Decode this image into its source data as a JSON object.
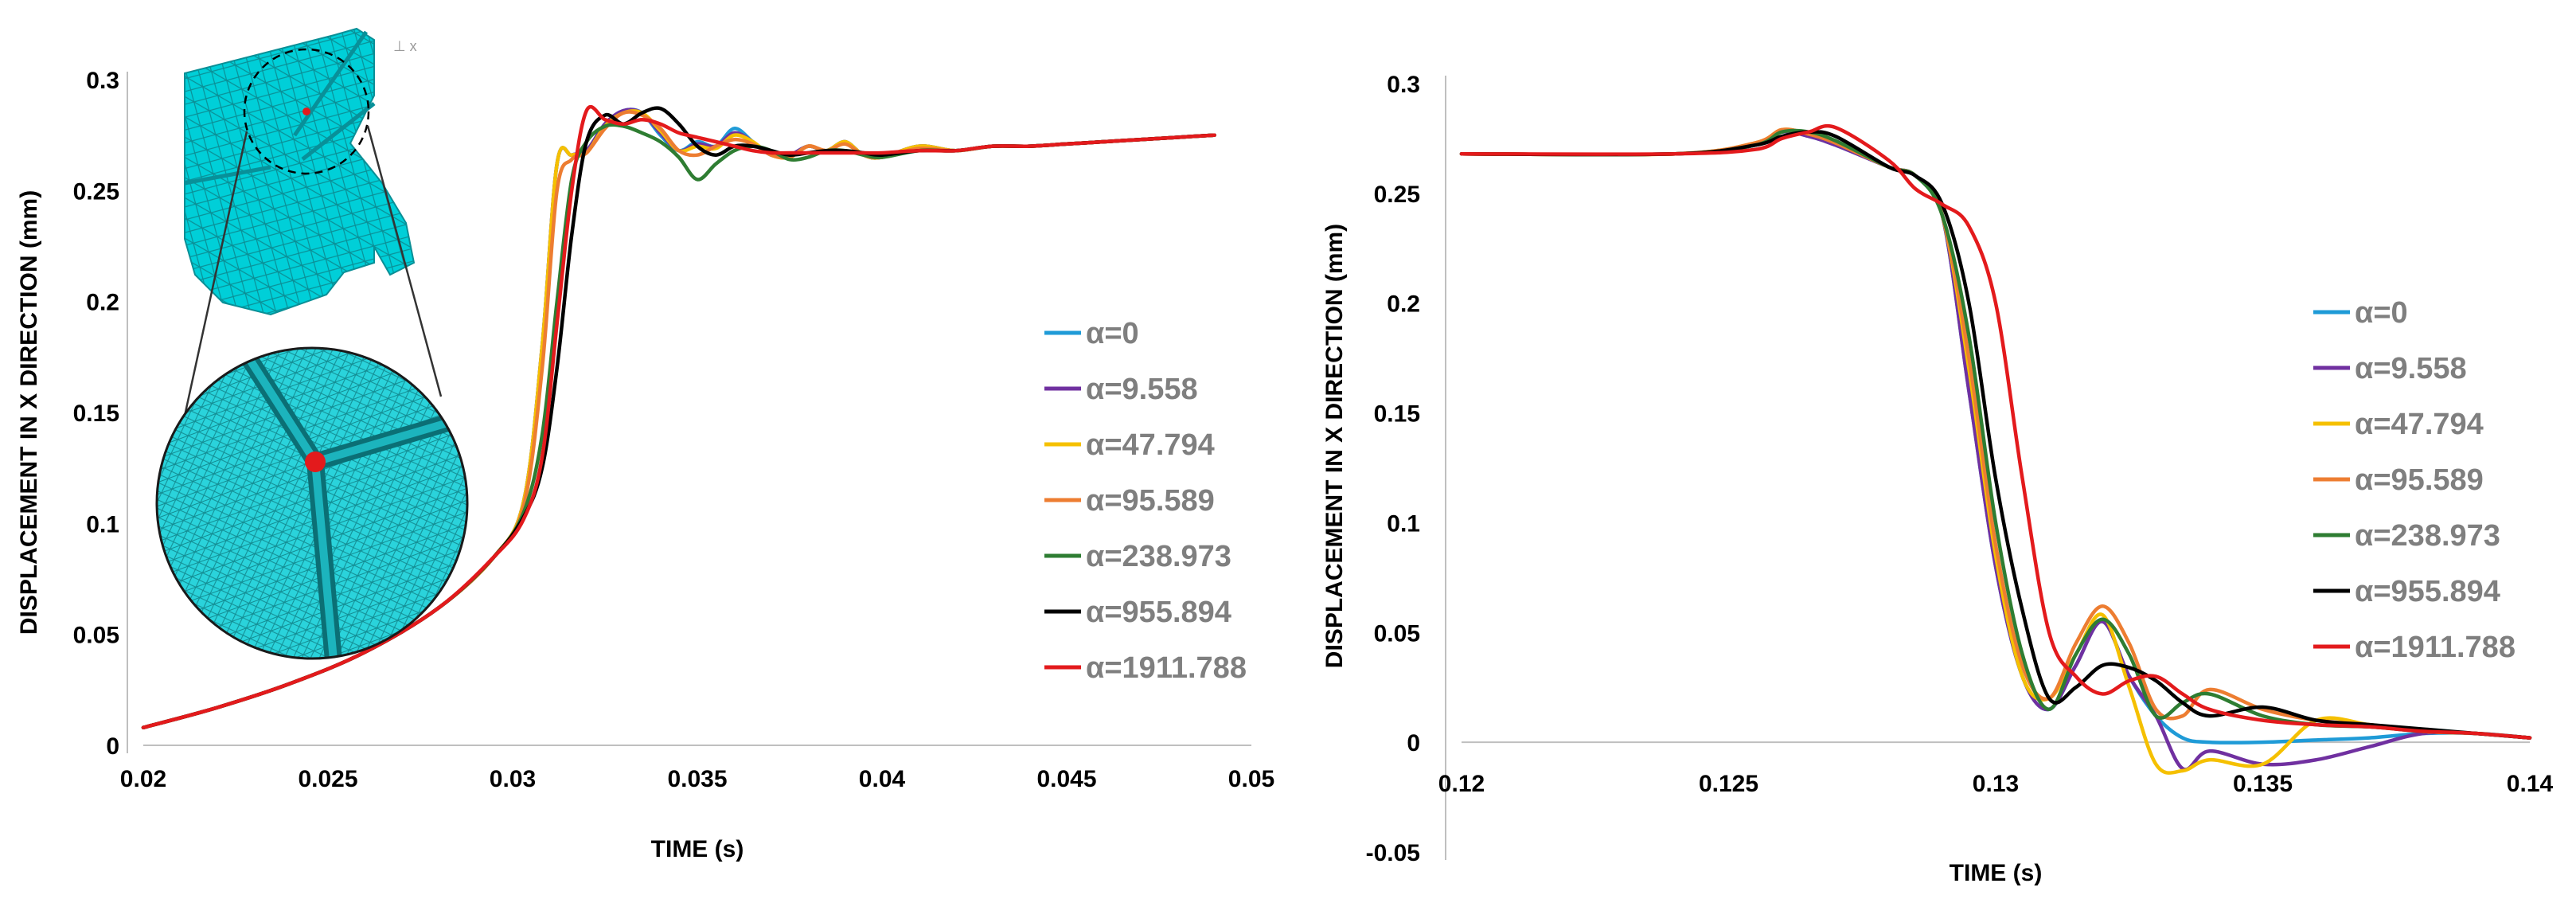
{
  "chart_data": [
    {
      "type": "line",
      "xlabel": "TIME (s)",
      "ylabel": "DISPLACEMENT IN X DIRECTION (mm)",
      "xlim": [
        0.02,
        0.05
      ],
      "ylim": [
        0,
        0.3
      ],
      "xticks": [
        "0.02",
        "0.025",
        "0.03",
        "0.035",
        "0.04",
        "0.045",
        "0.05"
      ],
      "yticks": [
        "0",
        "0.05",
        "0.1",
        "0.15",
        "0.2",
        "0.25",
        "0.3"
      ],
      "legend_position": "right",
      "inset": "meshed mechanical part with circular zoom of node junction (red dot)",
      "series": [
        {
          "name": "α=0",
          "color": "#1f9bd7",
          "x": [
            0.02,
            0.022,
            0.024,
            0.026,
            0.028,
            0.0295,
            0.0303,
            0.0308,
            0.0312,
            0.0316,
            0.032,
            0.0325,
            0.033,
            0.0335,
            0.034,
            0.0345,
            0.035,
            0.0355,
            0.036,
            0.0365,
            0.037,
            0.0375,
            0.038,
            0.0385,
            0.039,
            0.0395,
            0.04,
            0.041,
            0.042,
            0.043,
            0.044,
            0.045,
            0.046,
            0.047,
            0.048,
            0.049
          ],
          "y": [
            0.008,
            0.017,
            0.028,
            0.042,
            0.062,
            0.085,
            0.11,
            0.18,
            0.262,
            0.266,
            0.268,
            0.28,
            0.286,
            0.285,
            0.275,
            0.268,
            0.272,
            0.27,
            0.278,
            0.272,
            0.266,
            0.266,
            0.27,
            0.268,
            0.272,
            0.266,
            0.265,
            0.27,
            0.268,
            0.27,
            0.27,
            0.271,
            0.272,
            0.273,
            0.274,
            0.275
          ]
        },
        {
          "name": "α=9.558",
          "color": "#7030a0",
          "x": [
            0.02,
            0.022,
            0.024,
            0.026,
            0.028,
            0.0295,
            0.0303,
            0.0308,
            0.0312,
            0.0316,
            0.032,
            0.0325,
            0.033,
            0.0335,
            0.034,
            0.0345,
            0.035,
            0.0355,
            0.036,
            0.0365,
            0.037,
            0.0375,
            0.038,
            0.0385,
            0.039,
            0.0395,
            0.04,
            0.041,
            0.042,
            0.043,
            0.044,
            0.045,
            0.046,
            0.047,
            0.048,
            0.049
          ],
          "y": [
            0.008,
            0.017,
            0.028,
            0.042,
            0.062,
            0.085,
            0.11,
            0.18,
            0.262,
            0.266,
            0.268,
            0.28,
            0.286,
            0.285,
            0.276,
            0.268,
            0.271,
            0.27,
            0.276,
            0.272,
            0.266,
            0.266,
            0.27,
            0.268,
            0.272,
            0.266,
            0.265,
            0.27,
            0.268,
            0.27,
            0.27,
            0.271,
            0.272,
            0.273,
            0.274,
            0.275
          ]
        },
        {
          "name": "α=47.794",
          "color": "#f5c000",
          "x": [
            0.02,
            0.022,
            0.024,
            0.026,
            0.028,
            0.0295,
            0.0303,
            0.0308,
            0.0312,
            0.0316,
            0.032,
            0.0325,
            0.033,
            0.0335,
            0.034,
            0.0345,
            0.035,
            0.0355,
            0.036,
            0.0365,
            0.037,
            0.0375,
            0.038,
            0.0385,
            0.039,
            0.0395,
            0.04,
            0.041,
            0.042,
            0.043,
            0.044,
            0.045,
            0.046,
            0.047,
            0.048,
            0.049
          ],
          "y": [
            0.008,
            0.017,
            0.028,
            0.042,
            0.062,
            0.085,
            0.11,
            0.18,
            0.262,
            0.266,
            0.267,
            0.279,
            0.285,
            0.285,
            0.277,
            0.268,
            0.27,
            0.269,
            0.275,
            0.272,
            0.266,
            0.265,
            0.27,
            0.268,
            0.272,
            0.266,
            0.265,
            0.27,
            0.268,
            0.27,
            0.27,
            0.271,
            0.272,
            0.273,
            0.274,
            0.275
          ]
        },
        {
          "name": "α=95.589",
          "color": "#ed7d31",
          "x": [
            0.02,
            0.022,
            0.024,
            0.026,
            0.028,
            0.0295,
            0.0303,
            0.0308,
            0.0312,
            0.0316,
            0.032,
            0.0325,
            0.033,
            0.0335,
            0.034,
            0.0345,
            0.035,
            0.0355,
            0.036,
            0.0365,
            0.037,
            0.0375,
            0.038,
            0.0385,
            0.039,
            0.0395,
            0.04,
            0.041,
            0.042,
            0.043,
            0.044,
            0.045,
            0.046,
            0.047,
            0.048,
            0.049
          ],
          "y": [
            0.008,
            0.017,
            0.028,
            0.042,
            0.062,
            0.085,
            0.108,
            0.17,
            0.25,
            0.264,
            0.267,
            0.278,
            0.285,
            0.284,
            0.278,
            0.268,
            0.266,
            0.27,
            0.273,
            0.271,
            0.266,
            0.265,
            0.27,
            0.268,
            0.271,
            0.266,
            0.265,
            0.269,
            0.268,
            0.27,
            0.27,
            0.271,
            0.272,
            0.273,
            0.274,
            0.275
          ]
        },
        {
          "name": "α=238.973",
          "color": "#2e7d32",
          "x": [
            0.02,
            0.022,
            0.024,
            0.026,
            0.028,
            0.0295,
            0.0303,
            0.0308,
            0.0312,
            0.0316,
            0.032,
            0.0325,
            0.033,
            0.0335,
            0.034,
            0.0345,
            0.035,
            0.0355,
            0.036,
            0.0365,
            0.037,
            0.0375,
            0.038,
            0.0385,
            0.039,
            0.0395,
            0.04,
            0.041,
            0.042,
            0.043,
            0.044,
            0.045,
            0.046,
            0.047,
            0.048,
            0.049
          ],
          "y": [
            0.008,
            0.017,
            0.028,
            0.042,
            0.062,
            0.085,
            0.105,
            0.14,
            0.2,
            0.255,
            0.272,
            0.279,
            0.279,
            0.276,
            0.272,
            0.265,
            0.255,
            0.262,
            0.268,
            0.27,
            0.268,
            0.264,
            0.265,
            0.268,
            0.268,
            0.266,
            0.265,
            0.268,
            0.268,
            0.27,
            0.27,
            0.271,
            0.272,
            0.273,
            0.274,
            0.275
          ]
        },
        {
          "name": "α=955.894",
          "color": "#000000",
          "x": [
            0.02,
            0.022,
            0.024,
            0.026,
            0.028,
            0.0295,
            0.0303,
            0.0308,
            0.0312,
            0.0316,
            0.032,
            0.0325,
            0.033,
            0.0335,
            0.034,
            0.0345,
            0.035,
            0.0355,
            0.036,
            0.0365,
            0.037,
            0.0375,
            0.038,
            0.0385,
            0.039,
            0.0395,
            0.04,
            0.041,
            0.042,
            0.043,
            0.044,
            0.045,
            0.046,
            0.047,
            0.048,
            0.049
          ],
          "y": [
            0.008,
            0.017,
            0.028,
            0.042,
            0.062,
            0.085,
            0.103,
            0.125,
            0.17,
            0.23,
            0.272,
            0.284,
            0.28,
            0.285,
            0.287,
            0.28,
            0.27,
            0.266,
            0.27,
            0.27,
            0.268,
            0.266,
            0.267,
            0.268,
            0.268,
            0.267,
            0.266,
            0.268,
            0.268,
            0.27,
            0.27,
            0.271,
            0.272,
            0.273,
            0.274,
            0.275
          ]
        },
        {
          "name": "α=1911.788",
          "color": "#e31a1c",
          "x": [
            0.02,
            0.022,
            0.024,
            0.026,
            0.028,
            0.0295,
            0.0303,
            0.0308,
            0.0312,
            0.0316,
            0.032,
            0.0325,
            0.033,
            0.0335,
            0.034,
            0.0345,
            0.035,
            0.0355,
            0.036,
            0.0365,
            0.037,
            0.0375,
            0.038,
            0.0385,
            0.039,
            0.0395,
            0.04,
            0.041,
            0.042,
            0.043,
            0.044,
            0.045,
            0.046,
            0.047,
            0.048,
            0.049
          ],
          "y": [
            0.008,
            0.017,
            0.028,
            0.042,
            0.062,
            0.085,
            0.102,
            0.13,
            0.19,
            0.25,
            0.286,
            0.282,
            0.28,
            0.282,
            0.28,
            0.276,
            0.274,
            0.272,
            0.27,
            0.268,
            0.267,
            0.267,
            0.267,
            0.267,
            0.267,
            0.267,
            0.267,
            0.268,
            0.268,
            0.27,
            0.27,
            0.271,
            0.272,
            0.273,
            0.274,
            0.275
          ]
        }
      ]
    },
    {
      "type": "line",
      "xlabel": "TIME (s)",
      "ylabel": "DISPLACEMENT IN X DIRECTION (mm)",
      "xlim": [
        0.12,
        0.14
      ],
      "ylim": [
        -0.05,
        0.3
      ],
      "xticks": [
        "0.12",
        "0.125",
        "0.13",
        "0.135",
        "0.14"
      ],
      "yticks": [
        "-0.05",
        "0",
        "0.05",
        "0.1",
        "0.15",
        "0.2",
        "0.25",
        "0.3"
      ],
      "legend_position": "right",
      "series": [
        {
          "name": "α=0",
          "color": "#1f9bd7",
          "x": [
            0.12,
            0.124,
            0.1255,
            0.126,
            0.1265,
            0.127,
            0.128,
            0.1285,
            0.129,
            0.1295,
            0.13,
            0.1305,
            0.131,
            0.1315,
            0.132,
            0.1325,
            0.133,
            0.1335,
            0.134,
            0.135,
            0.136,
            0.137,
            0.138,
            0.139,
            0.14
          ],
          "y": [
            0.268,
            0.268,
            0.272,
            0.278,
            0.276,
            0.272,
            0.262,
            0.258,
            0.24,
            0.16,
            0.08,
            0.03,
            0.015,
            0.035,
            0.055,
            0.03,
            0.012,
            0.002,
            0.0,
            0.0,
            0.001,
            0.002,
            0.004,
            0.004,
            0.002
          ]
        },
        {
          "name": "α=9.558",
          "color": "#7030a0",
          "x": [
            0.12,
            0.124,
            0.1255,
            0.126,
            0.1265,
            0.127,
            0.128,
            0.1285,
            0.129,
            0.1295,
            0.13,
            0.1305,
            0.131,
            0.1315,
            0.132,
            0.1325,
            0.133,
            0.1335,
            0.134,
            0.135,
            0.136,
            0.137,
            0.138,
            0.139,
            0.14
          ],
          "y": [
            0.268,
            0.268,
            0.272,
            0.278,
            0.276,
            0.272,
            0.262,
            0.258,
            0.24,
            0.16,
            0.08,
            0.03,
            0.015,
            0.035,
            0.055,
            0.03,
            0.012,
            -0.012,
            -0.004,
            -0.01,
            -0.008,
            -0.002,
            0.004,
            0.004,
            0.002
          ]
        },
        {
          "name": "α=47.794",
          "color": "#f5c000",
          "x": [
            0.12,
            0.124,
            0.1255,
            0.126,
            0.1265,
            0.127,
            0.128,
            0.1285,
            0.129,
            0.1295,
            0.13,
            0.1305,
            0.131,
            0.1315,
            0.132,
            0.1325,
            0.133,
            0.1335,
            0.134,
            0.135,
            0.136,
            0.137,
            0.138,
            0.139,
            0.14
          ],
          "y": [
            0.268,
            0.268,
            0.273,
            0.279,
            0.277,
            0.273,
            0.262,
            0.258,
            0.24,
            0.17,
            0.085,
            0.03,
            0.02,
            0.04,
            0.058,
            0.025,
            -0.01,
            -0.013,
            -0.008,
            -0.01,
            0.01,
            0.008,
            0.005,
            0.004,
            0.002
          ]
        },
        {
          "name": "α=95.589",
          "color": "#ed7d31",
          "x": [
            0.12,
            0.124,
            0.1255,
            0.126,
            0.1265,
            0.127,
            0.128,
            0.1285,
            0.129,
            0.1295,
            0.13,
            0.1305,
            0.131,
            0.1315,
            0.132,
            0.1325,
            0.133,
            0.1335,
            0.134,
            0.135,
            0.136,
            0.137,
            0.138,
            0.139,
            0.14
          ],
          "y": [
            0.268,
            0.268,
            0.273,
            0.279,
            0.277,
            0.273,
            0.262,
            0.258,
            0.24,
            0.175,
            0.09,
            0.035,
            0.02,
            0.045,
            0.062,
            0.045,
            0.015,
            0.012,
            0.024,
            0.015,
            0.01,
            0.008,
            0.005,
            0.004,
            0.002
          ]
        },
        {
          "name": "α=238.973",
          "color": "#2e7d32",
          "x": [
            0.12,
            0.124,
            0.1255,
            0.126,
            0.1265,
            0.127,
            0.128,
            0.1285,
            0.129,
            0.1295,
            0.13,
            0.1305,
            0.131,
            0.1315,
            0.132,
            0.1325,
            0.133,
            0.1335,
            0.134,
            0.135,
            0.136,
            0.137,
            0.138,
            0.139,
            0.14
          ],
          "y": [
            0.268,
            0.268,
            0.272,
            0.278,
            0.278,
            0.274,
            0.262,
            0.258,
            0.24,
            0.185,
            0.1,
            0.04,
            0.015,
            0.04,
            0.056,
            0.04,
            0.012,
            0.018,
            0.022,
            0.012,
            0.008,
            0.007,
            0.005,
            0.004,
            0.002
          ]
        },
        {
          "name": "α=955.894",
          "color": "#000000",
          "x": [
            0.12,
            0.124,
            0.1255,
            0.126,
            0.1265,
            0.127,
            0.128,
            0.1285,
            0.129,
            0.1295,
            0.13,
            0.1305,
            0.131,
            0.1315,
            0.132,
            0.1325,
            0.133,
            0.1335,
            0.134,
            0.135,
            0.136,
            0.137,
            0.138,
            0.139,
            0.14
          ],
          "y": [
            0.268,
            0.268,
            0.272,
            0.276,
            0.278,
            0.276,
            0.262,
            0.258,
            0.245,
            0.2,
            0.12,
            0.06,
            0.02,
            0.025,
            0.035,
            0.034,
            0.028,
            0.018,
            0.012,
            0.016,
            0.01,
            0.008,
            0.006,
            0.004,
            0.002
          ]
        },
        {
          "name": "α=1911.788",
          "color": "#e31a1c",
          "x": [
            0.12,
            0.124,
            0.1255,
            0.126,
            0.1265,
            0.127,
            0.128,
            0.1285,
            0.129,
            0.1295,
            0.13,
            0.1305,
            0.131,
            0.1315,
            0.132,
            0.1325,
            0.133,
            0.1335,
            0.134,
            0.135,
            0.136,
            0.137,
            0.138,
            0.139,
            0.14
          ],
          "y": [
            0.268,
            0.268,
            0.27,
            0.275,
            0.278,
            0.28,
            0.265,
            0.252,
            0.245,
            0.235,
            0.2,
            0.12,
            0.05,
            0.03,
            0.022,
            0.028,
            0.03,
            0.022,
            0.015,
            0.01,
            0.008,
            0.007,
            0.005,
            0.004,
            0.002
          ]
        }
      ]
    }
  ]
}
